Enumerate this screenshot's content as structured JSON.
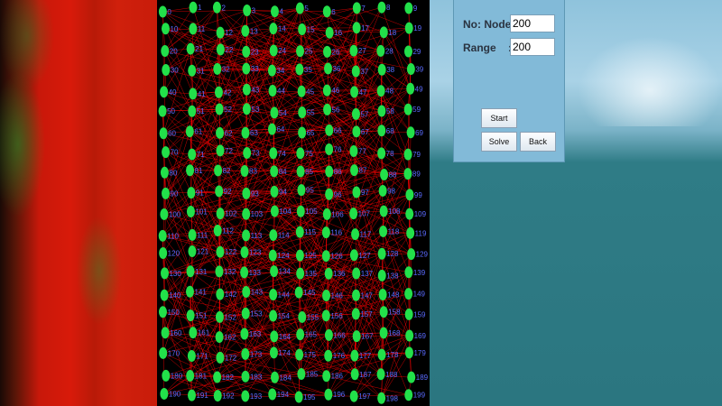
{
  "panel": {
    "nodes_label": "No: Nodes:",
    "nodes_value": "200",
    "range_label": "Range    :",
    "range_value": "200",
    "start_label": "Start",
    "solve_label": "Solve",
    "back_label": "Back"
  },
  "graph": {
    "node_count": 200,
    "range": 200,
    "node_color": "#22e04a",
    "edge_color": "#ff0000",
    "label_color": "#5a6cff",
    "background": "#000000"
  }
}
